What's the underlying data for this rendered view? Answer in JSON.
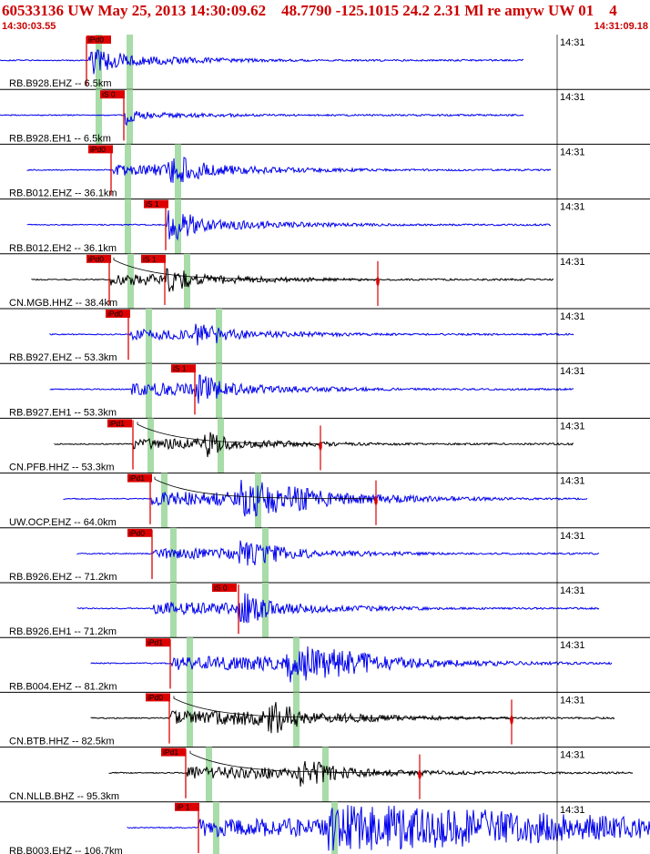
{
  "header": {
    "title": "60533136 UW May 25, 2013 14:30:09.62    48.7790 -125.1015 24.2 2.31 Ml re amyw UW 01    4",
    "start_time": "14:30:03.55",
    "end_time": "14:31:09.18"
  },
  "colors": {
    "background": "#ffffff",
    "header_text": "#cc0000",
    "trace_blue": "#0000ee",
    "trace_black": "#000000",
    "pick": "#dd0000",
    "window": "#a8dca8",
    "grid": "#000000"
  },
  "traces": [
    {
      "label": "RB.B928.EHZ -- 6.5km",
      "time_label": "14:31",
      "pick_label": "iPd0",
      "color": "blue"
    },
    {
      "label": "RB.B928.EH1 -- 6.5km",
      "time_label": "14:31",
      "pick_label": "iS 0",
      "color": "blue"
    },
    {
      "label": "RB.B012.EHZ -- 36.1km",
      "time_label": "14:31",
      "pick_label": "iPd0",
      "color": "blue"
    },
    {
      "label": "RB.B012.EH2 -- 36.1km",
      "time_label": "14:31",
      "pick_label": "iS 1",
      "color": "blue"
    },
    {
      "label": "CN.MGB.HHZ -- 38.4km",
      "time_label": "14:31",
      "pick_label": "iPd0",
      "pick_label_2": "iS 1",
      "color": "black"
    },
    {
      "label": "RB.B927.EHZ -- 53.3km",
      "time_label": "14:31",
      "pick_label": "iPd0",
      "color": "blue"
    },
    {
      "label": "RB.B927.EH1 -- 53.3km",
      "time_label": "14:31",
      "pick_label": "iS 1",
      "color": "blue"
    },
    {
      "label": "CN.PFB.HHZ -- 53.3km",
      "time_label": "14:31",
      "pick_label": "iPd1",
      "color": "black"
    },
    {
      "label": "UW.OCP.EHZ -- 64.0km",
      "time_label": "14:31",
      "pick_label": "iPd1",
      "color": "blue"
    },
    {
      "label": "RB.B926.EHZ -- 71.2km",
      "time_label": "14:31",
      "pick_label": "iPd0",
      "color": "blue"
    },
    {
      "label": "RB.B926.EH1 -- 71.2km",
      "time_label": "14:31",
      "pick_label": "iS 0",
      "color": "blue"
    },
    {
      "label": "RB.B004.EHZ -- 81.2km",
      "time_label": "14:31",
      "pick_label": "iPd1",
      "color": "blue"
    },
    {
      "label": "CN.BTB.HHZ -- 82.5km",
      "time_label": "14:31",
      "pick_label": "iPd0",
      "color": "black"
    },
    {
      "label": "CN.NLLB.BHZ -- 95.3km",
      "time_label": "14:31",
      "pick_label": "iPd1",
      "color": "black"
    },
    {
      "label": "RB.B003.EHZ -- 106.7km",
      "time_label": "14:31",
      "pick_label": "iP 1",
      "color": "blue"
    }
  ]
}
